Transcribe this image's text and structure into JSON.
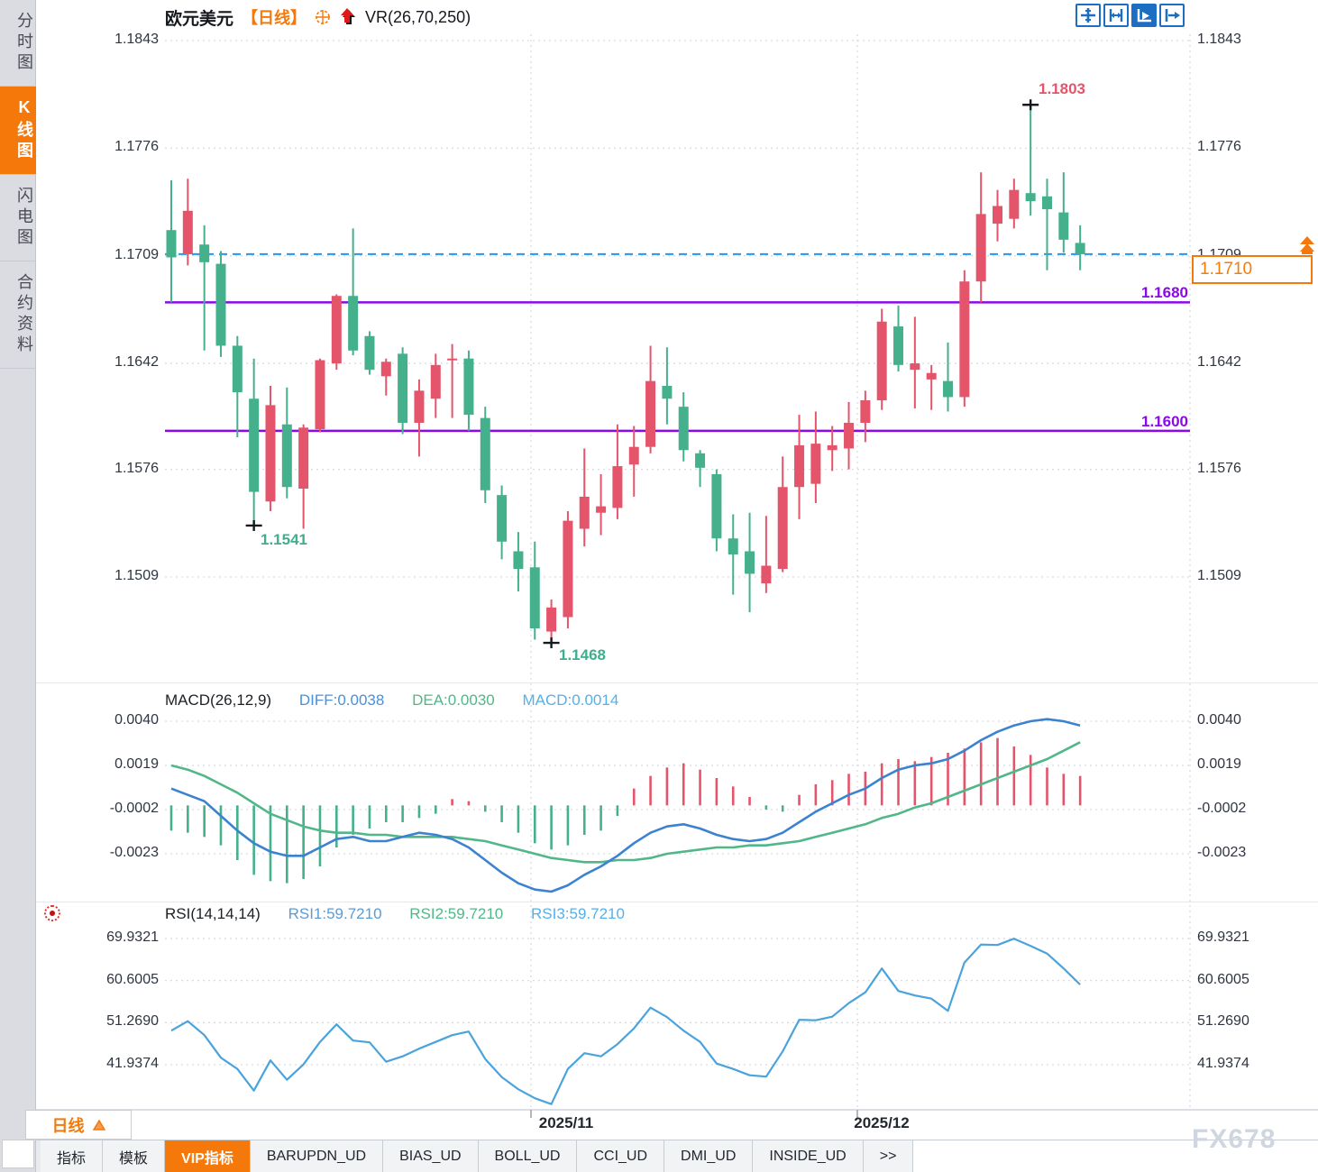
{
  "sidebar": {
    "items": [
      {
        "name": "time-share-chart",
        "label": "分时图",
        "active": false
      },
      {
        "name": "kline-chart",
        "label": "K线图",
        "active": true
      },
      {
        "name": "flash-chart",
        "label": "闪电图",
        "active": false
      },
      {
        "name": "contract-info",
        "label": "合约资料",
        "active": false
      }
    ]
  },
  "header": {
    "symbol": "欧元美元",
    "period": "【日线】",
    "indicator": "VR(26,70,250)"
  },
  "toolbar": {
    "buttons": [
      {
        "name": "crosshair-button"
      },
      {
        "name": "axis-range-button"
      },
      {
        "name": "auto-play-button"
      },
      {
        "name": "jump-to-latest-button"
      }
    ]
  },
  "price_panel": {
    "y_ticks": [
      "1.1843",
      "1.1776",
      "1.1709",
      "1.1642",
      "1.1576",
      "1.1509"
    ],
    "current_price": "1.1710",
    "high_annotation": "1.1803",
    "low_annotation_1": "1.1541",
    "low_annotation_2": "1.1468",
    "resistance_label": "1.1680",
    "support_label": "1.1600"
  },
  "macd_panel": {
    "title": "MACD(26,12,9)",
    "diff_label": "DIFF:0.0038",
    "dea_label": "DEA:0.0030",
    "macd_label": "MACD:0.0014",
    "y_ticks": [
      "0.0040",
      "0.0019",
      "-0.0002",
      "-0.0023"
    ]
  },
  "rsi_panel": {
    "title": "RSI(14,14,14)",
    "rsi1_label": "RSI1:59.7210",
    "rsi2_label": "RSI2:59.7210",
    "rsi3_label": "RSI3:59.7210",
    "y_ticks": [
      "69.9321",
      "60.6005",
      "51.2690",
      "41.9374"
    ]
  },
  "x_axis": {
    "labels": [
      "2025/11",
      "2025/12"
    ]
  },
  "period_selector": {
    "label": "日线"
  },
  "bottom_tabs": [
    {
      "name": "tab-indicators",
      "label": "指标",
      "active": false
    },
    {
      "name": "tab-templates",
      "label": "模板",
      "active": false
    },
    {
      "name": "tab-vip-indicators",
      "label": "VIP指标",
      "active": true
    },
    {
      "name": "tab-barupdn-ud",
      "label": "BARUPDN_UD",
      "active": false
    },
    {
      "name": "tab-bias-ud",
      "label": "BIAS_UD",
      "active": false
    },
    {
      "name": "tab-boll-ud",
      "label": "BOLL_UD",
      "active": false
    },
    {
      "name": "tab-cci-ud",
      "label": "CCI_UD",
      "active": false
    },
    {
      "name": "tab-dmi-ud",
      "label": "DMI_UD",
      "active": false
    },
    {
      "name": "tab-inside-ud",
      "label": "INSIDE_UD",
      "active": false
    },
    {
      "name": "tab-more",
      "label": ">>",
      "active": false
    }
  ],
  "watermark": "FX678",
  "colors": {
    "up_candle": "#e4556b",
    "down_candle": "#45b08c",
    "accent_orange": "#f5790a",
    "purple_line": "#8b08ea",
    "current_price_dashed": "#2196f3",
    "diff_line": "#3b82d0",
    "dea_line": "#52b788",
    "rsi_line": "#4aa3dc",
    "grid": "#d9dce0",
    "axis_text": "#2f3540"
  },
  "chart_data": [
    {
      "type": "candlestick",
      "title": "欧元美元 日线 (EUR/USD Daily)",
      "color_convention": "red=up, green=down",
      "ylim": [
        1.145,
        1.185
      ],
      "y_ticks": [
        1.1843,
        1.1776,
        1.1709,
        1.1642,
        1.1576,
        1.1509
      ],
      "x_tick_labels": [
        "2025/11",
        "2025/12"
      ],
      "hlines": [
        {
          "value": 1.171,
          "style": "dashed",
          "role": "current-price"
        },
        {
          "value": 1.168,
          "style": "solid",
          "role": "resistance"
        },
        {
          "value": 1.16,
          "style": "solid",
          "role": "support"
        }
      ],
      "markers": [
        {
          "candle_index": 5,
          "type": "low",
          "label": "1.1541"
        },
        {
          "candle_index": 23,
          "type": "low",
          "label": "1.1468"
        },
        {
          "candle_index": 52,
          "type": "high",
          "label": "1.1803"
        }
      ],
      "candles_ohlc": [
        [
          1.1725,
          1.1756,
          1.168,
          1.1708
        ],
        [
          1.171,
          1.1757,
          1.1703,
          1.1737
        ],
        [
          1.1716,
          1.1728,
          1.165,
          1.1705
        ],
        [
          1.1704,
          1.1712,
          1.1646,
          1.1653
        ],
        [
          1.1653,
          1.1659,
          1.1596,
          1.1624
        ],
        [
          1.162,
          1.1645,
          1.1541,
          1.1562
        ],
        [
          1.1556,
          1.1628,
          1.155,
          1.1616
        ],
        [
          1.1604,
          1.1627,
          1.1558,
          1.1565
        ],
        [
          1.1564,
          1.1604,
          1.1539,
          1.1602
        ],
        [
          1.1601,
          1.1645,
          1.1599,
          1.1644
        ],
        [
          1.1642,
          1.1685,
          1.1638,
          1.1684
        ],
        [
          1.1684,
          1.1726,
          1.1647,
          1.165
        ],
        [
          1.1659,
          1.1662,
          1.1635,
          1.1638
        ],
        [
          1.1634,
          1.1645,
          1.1622,
          1.1643
        ],
        [
          1.1648,
          1.1652,
          1.1598,
          1.1605
        ],
        [
          1.1605,
          1.1632,
          1.1584,
          1.1625
        ],
        [
          1.162,
          1.1648,
          1.1608,
          1.1641
        ],
        [
          1.1644,
          1.1654,
          1.1608,
          1.1645
        ],
        [
          1.1645,
          1.165,
          1.16,
          1.161
        ],
        [
          1.1608,
          1.1615,
          1.1555,
          1.1563
        ],
        [
          1.156,
          1.1566,
          1.152,
          1.1531
        ],
        [
          1.1525,
          1.1537,
          1.15,
          1.1514
        ],
        [
          1.1515,
          1.1531,
          1.147,
          1.1477
        ],
        [
          1.1475,
          1.1495,
          1.1468,
          1.149
        ],
        [
          1.1484,
          1.155,
          1.1477,
          1.1544
        ],
        [
          1.1539,
          1.1589,
          1.1528,
          1.1559
        ],
        [
          1.1549,
          1.1573,
          1.1535,
          1.1553
        ],
        [
          1.1552,
          1.1604,
          1.1545,
          1.1578
        ],
        [
          1.1579,
          1.1603,
          1.1559,
          1.159
        ],
        [
          1.159,
          1.1653,
          1.1586,
          1.1631
        ],
        [
          1.1628,
          1.1652,
          1.1604,
          1.162
        ],
        [
          1.1615,
          1.1624,
          1.1581,
          1.1588
        ],
        [
          1.1586,
          1.1588,
          1.1565,
          1.1577
        ],
        [
          1.1573,
          1.1576,
          1.1525,
          1.1533
        ],
        [
          1.1533,
          1.1548,
          1.1498,
          1.1523
        ],
        [
          1.1525,
          1.1549,
          1.1487,
          1.1511
        ],
        [
          1.1505,
          1.1547,
          1.1499,
          1.1516
        ],
        [
          1.1514,
          1.1584,
          1.1512,
          1.1565
        ],
        [
          1.1565,
          1.161,
          1.1545,
          1.1591
        ],
        [
          1.1567,
          1.1612,
          1.1555,
          1.1592
        ],
        [
          1.1588,
          1.1603,
          1.1575,
          1.1591
        ],
        [
          1.1589,
          1.1618,
          1.1576,
          1.1605
        ],
        [
          1.1605,
          1.1625,
          1.1593,
          1.1619
        ],
        [
          1.1619,
          1.1676,
          1.1613,
          1.1668
        ],
        [
          1.1665,
          1.1678,
          1.1637,
          1.1641
        ],
        [
          1.1638,
          1.1671,
          1.1614,
          1.1642
        ],
        [
          1.1632,
          1.1641,
          1.1613,
          1.1636
        ],
        [
          1.1631,
          1.1655,
          1.1612,
          1.1621
        ],
        [
          1.1621,
          1.17,
          1.1615,
          1.1693
        ],
        [
          1.1693,
          1.1761,
          1.168,
          1.1735
        ],
        [
          1.1729,
          1.175,
          1.1718,
          1.174
        ],
        [
          1.1732,
          1.1757,
          1.1726,
          1.175
        ],
        [
          1.1748,
          1.1803,
          1.1734,
          1.1743
        ],
        [
          1.1746,
          1.1757,
          1.17,
          1.1738
        ],
        [
          1.1736,
          1.1761,
          1.1711,
          1.1719
        ],
        [
          1.1717,
          1.1728,
          1.17,
          1.171
        ]
      ]
    },
    {
      "type": "bar",
      "name": "MACD(26,12,9)",
      "y_ticks": [
        0.004,
        0.0019,
        -0.0002,
        -0.0023
      ],
      "current": {
        "DIFF": 0.0038,
        "DEA": 0.003,
        "MACD": 0.0014
      },
      "histogram": [
        -0.0012,
        -0.0013,
        -0.0015,
        -0.0019,
        -0.0026,
        -0.0033,
        -0.0036,
        -0.0037,
        -0.0035,
        -0.0029,
        -0.002,
        -0.0014,
        -0.0011,
        -0.0008,
        -0.0008,
        -0.0006,
        -0.0004,
        0.0003,
        0.0002,
        -0.0003,
        -0.0008,
        -0.0013,
        -0.0018,
        -0.0021,
        -0.0019,
        -0.0014,
        -0.0012,
        -0.0005,
        0.0008,
        0.0014,
        0.0018,
        0.002,
        0.0017,
        0.0013,
        0.0009,
        0.0004,
        -0.0002,
        -0.0003,
        0.0005,
        0.001,
        0.0012,
        0.0015,
        0.0016,
        0.002,
        0.0022,
        0.0021,
        0.0023,
        0.0025,
        0.0027,
        0.003,
        0.0032,
        0.0028,
        0.0024,
        0.0018,
        0.0015,
        0.0014
      ],
      "diff": [
        0.0008,
        0.0005,
        0.0002,
        -0.0005,
        -0.0012,
        -0.0018,
        -0.0022,
        -0.0024,
        -0.0024,
        -0.002,
        -0.0016,
        -0.0015,
        -0.0017,
        -0.0017,
        -0.0015,
        -0.0013,
        -0.0014,
        -0.0016,
        -0.002,
        -0.0026,
        -0.0032,
        -0.0037,
        -0.004,
        -0.0041,
        -0.0038,
        -0.0033,
        -0.0029,
        -0.0024,
        -0.0018,
        -0.0013,
        -0.001,
        -0.0009,
        -0.0011,
        -0.0014,
        -0.0016,
        -0.0017,
        -0.0016,
        -0.0013,
        -0.0008,
        -0.0003,
        0.0001,
        0.0005,
        0.0008,
        0.0013,
        0.0017,
        0.0019,
        0.002,
        0.0022,
        0.0026,
        0.0031,
        0.0035,
        0.0038,
        0.004,
        0.0041,
        0.004,
        0.0038
      ],
      "dea": [
        0.0019,
        0.0017,
        0.0014,
        0.001,
        0.0006,
        0.0001,
        -0.0004,
        -0.0007,
        -0.001,
        -0.0012,
        -0.0013,
        -0.0013,
        -0.0014,
        -0.0014,
        -0.0015,
        -0.0015,
        -0.0015,
        -0.0015,
        -0.0016,
        -0.0017,
        -0.0019,
        -0.0021,
        -0.0023,
        -0.0025,
        -0.0026,
        -0.0027,
        -0.0027,
        -0.0026,
        -0.0026,
        -0.0025,
        -0.0023,
        -0.0022,
        -0.0021,
        -0.002,
        -0.002,
        -0.0019,
        -0.0019,
        -0.0018,
        -0.0017,
        -0.0015,
        -0.0013,
        -0.0011,
        -0.0009,
        -0.0006,
        -0.0004,
        -0.0001,
        0.0001,
        0.0004,
        0.0007,
        0.001,
        0.0013,
        0.0016,
        0.0019,
        0.0022,
        0.0026,
        0.003
      ]
    },
    {
      "type": "line",
      "name": "RSI(14,14,14)",
      "y_ticks": [
        69.9321,
        60.6005,
        51.269,
        41.9374
      ],
      "current": {
        "RSI1": 59.721,
        "RSI2": 59.721,
        "RSI3": 59.721
      },
      "values": [
        49.5,
        51.6,
        48.5,
        43.5,
        41.0,
        36.2,
        42.9,
        38.6,
        42.0,
        47.0,
        50.9,
        47.3,
        46.9,
        42.6,
        43.8,
        45.5,
        47.0,
        48.5,
        49.3,
        43.2,
        39.2,
        36.5,
        34.5,
        33.2,
        41.0,
        44.5,
        43.8,
        46.5,
        50.0,
        54.6,
        52.5,
        49.5,
        47.0,
        42.2,
        41.0,
        39.6,
        39.3,
        44.9,
        51.9,
        51.8,
        52.6,
        55.6,
        58.0,
        63.3,
        58.3,
        57.3,
        56.6,
        53.9,
        64.6,
        68.6,
        68.5,
        69.9,
        68.3,
        66.6,
        63.3,
        59.72
      ]
    }
  ]
}
